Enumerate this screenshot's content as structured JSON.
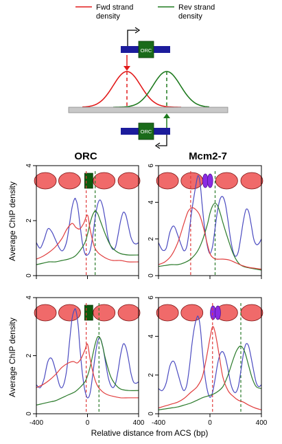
{
  "schematic": {
    "fwd_legend": "Fwd strand\ndensity",
    "rev_legend": "Rev strand\ndensity",
    "orc_label_top": "ORC",
    "orc_label_bottom": "ORC",
    "colors": {
      "fwd": "#e21b1b",
      "rev": "#1e7a1e",
      "dna": "#c8c8c8",
      "orc_box": "#1a6b1a",
      "dna_bar": "#1c1c9c"
    }
  },
  "columns": [
    "ORC",
    "Mcm2-7"
  ],
  "ylabel": "Average ChIP density",
  "xlabel": "Relative distance from ACS (bp)",
  "colors": {
    "fwd": "#e03c3c",
    "rev": "#2a7a2a",
    "nuc": "#4a4ac0",
    "nucleosome_fill": "#f06a6a",
    "orc_box": "#0d5a0d",
    "mcm": "#8a2be2"
  },
  "chart_data": [
    {
      "type": "line",
      "position": "top-left",
      "title": "ORC",
      "ylim": [
        0,
        4
      ],
      "yticks": [
        0,
        2,
        4
      ],
      "xlim": [
        -400,
        400
      ],
      "xticks": [
        -400,
        0,
        400
      ],
      "marker": "orc",
      "vlines": {
        "fwd": -10,
        "rev": 60
      },
      "series": [
        {
          "name": "fwd",
          "x": [
            -400,
            -350,
            -300,
            -250,
            -200,
            -160,
            -120,
            -90,
            -60,
            -30,
            0,
            20,
            50,
            80,
            120,
            160,
            200,
            260,
            320,
            400
          ],
          "y": [
            0.6,
            0.7,
            0.85,
            1.05,
            1.35,
            1.7,
            1.9,
            1.75,
            1.7,
            1.9,
            2.2,
            1.7,
            1.1,
            0.85,
            0.7,
            0.6,
            0.55,
            0.55,
            0.5,
            0.5
          ]
        },
        {
          "name": "rev",
          "x": [
            -400,
            -350,
            -300,
            -250,
            -200,
            -150,
            -100,
            -60,
            -20,
            0,
            20,
            40,
            60,
            80,
            100,
            140,
            180,
            220,
            260,
            320,
            400
          ],
          "y": [
            0.4,
            0.45,
            0.5,
            0.5,
            0.55,
            0.6,
            0.7,
            0.9,
            1.2,
            1.5,
            1.9,
            2.2,
            2.35,
            2.25,
            2.0,
            1.5,
            1.1,
            0.9,
            0.8,
            0.75,
            0.75
          ]
        },
        {
          "name": "nuc",
          "x": [
            -400,
            -370,
            -340,
            -310,
            -280,
            -250,
            -220,
            -200,
            -180,
            -160,
            -140,
            -120,
            -100,
            -90,
            -80,
            -70,
            -60,
            -40,
            -20,
            0,
            20,
            40,
            60,
            80,
            100,
            120,
            140,
            160,
            180,
            200,
            220,
            240,
            260,
            280,
            300,
            320,
            340,
            360,
            380,
            400
          ],
          "y": [
            1.2,
            1.0,
            1.3,
            1.7,
            1.6,
            1.3,
            1.0,
            0.9,
            1.0,
            1.3,
            1.9,
            2.5,
            2.8,
            2.75,
            2.6,
            2.3,
            1.9,
            1.2,
            0.8,
            0.75,
            0.9,
            1.4,
            2.1,
            2.6,
            2.75,
            2.5,
            2.0,
            1.4,
            1.1,
            0.95,
            1.05,
            1.5,
            2.0,
            2.3,
            2.2,
            1.8,
            1.4,
            1.2,
            1.15,
            1.2
          ]
        }
      ]
    },
    {
      "type": "line",
      "position": "top-right",
      "title": "Mcm2-7",
      "ylim": [
        0,
        6
      ],
      "yticks": [
        0,
        2,
        4,
        6
      ],
      "xlim": [
        -400,
        400
      ],
      "xticks": [
        -400,
        0,
        400
      ],
      "marker": "mcm",
      "vlines": {
        "fwd": -150,
        "rev": 40
      },
      "series": [
        {
          "name": "fwd",
          "x": [
            -400,
            -350,
            -300,
            -250,
            -200,
            -170,
            -140,
            -110,
            -80,
            -50,
            -20,
            0,
            20,
            50,
            100,
            150,
            200,
            250,
            300,
            350,
            400
          ],
          "y": [
            0.6,
            0.75,
            1.1,
            1.8,
            2.9,
            3.5,
            3.7,
            3.6,
            3.3,
            2.6,
            1.7,
            1.2,
            1.0,
            0.9,
            0.9,
            0.85,
            0.7,
            0.55,
            0.45,
            0.4,
            0.35
          ]
        },
        {
          "name": "rev",
          "x": [
            -400,
            -350,
            -300,
            -250,
            -200,
            -150,
            -100,
            -60,
            -20,
            0,
            20,
            40,
            60,
            80,
            100,
            140,
            180,
            220,
            260,
            320,
            400
          ],
          "y": [
            0.5,
            0.55,
            0.6,
            0.6,
            0.7,
            0.9,
            1.3,
            1.9,
            2.8,
            3.4,
            3.8,
            3.95,
            3.8,
            3.4,
            2.9,
            2.0,
            1.2,
            0.7,
            0.5,
            0.4,
            0.3
          ]
        },
        {
          "name": "nuc",
          "x": [
            -400,
            -370,
            -340,
            -310,
            -280,
            -250,
            -220,
            -200,
            -180,
            -160,
            -140,
            -120,
            -100,
            -90,
            -80,
            -70,
            -60,
            -40,
            -20,
            0,
            20,
            40,
            60,
            80,
            100,
            120,
            140,
            160,
            180,
            200,
            220,
            240,
            260,
            280,
            300,
            320,
            340,
            360,
            380,
            400
          ],
          "y": [
            1.8,
            1.4,
            1.5,
            2.4,
            2.7,
            2.2,
            1.6,
            1.35,
            1.6,
            2.5,
            3.6,
            4.5,
            5.3,
            5.45,
            5.2,
            4.6,
            3.8,
            2.5,
            1.6,
            1.2,
            1.6,
            2.6,
            3.6,
            4.2,
            4.3,
            3.9,
            3.0,
            2.0,
            1.3,
            1.05,
            1.3,
            2.1,
            3.0,
            3.6,
            3.5,
            2.8,
            2.0,
            1.7,
            1.75,
            2.0
          ]
        }
      ]
    },
    {
      "type": "line",
      "position": "bottom-left",
      "title": "",
      "ylim": [
        0,
        4
      ],
      "yticks": [
        0,
        2,
        4
      ],
      "xlim": [
        -400,
        400
      ],
      "xticks": [
        -400,
        0,
        400
      ],
      "marker": "orc",
      "vlines": {
        "fwd": -10,
        "rev": 90
      },
      "series": [
        {
          "name": "fwd",
          "x": [
            -400,
            -350,
            -300,
            -250,
            -200,
            -150,
            -110,
            -80,
            -50,
            -20,
            0,
            20,
            50,
            80,
            120,
            160,
            200,
            260,
            320,
            400
          ],
          "y": [
            0.9,
            1.0,
            1.15,
            1.35,
            1.6,
            1.75,
            1.8,
            1.75,
            1.9,
            2.2,
            2.4,
            1.9,
            1.3,
            0.95,
            0.75,
            0.65,
            0.6,
            0.55,
            0.55,
            0.55
          ]
        },
        {
          "name": "rev",
          "x": [
            -400,
            -350,
            -300,
            -250,
            -200,
            -150,
            -100,
            -60,
            -20,
            0,
            20,
            40,
            60,
            80,
            100,
            120,
            140,
            180,
            220,
            260,
            320,
            400
          ],
          "y": [
            0.3,
            0.35,
            0.4,
            0.45,
            0.55,
            0.65,
            0.75,
            0.9,
            1.1,
            1.3,
            1.6,
            2.0,
            2.4,
            2.65,
            2.6,
            2.3,
            1.9,
            1.3,
            1.0,
            0.85,
            0.8,
            0.8
          ]
        },
        {
          "name": "nuc",
          "x": [
            -400,
            -370,
            -340,
            -310,
            -280,
            -250,
            -220,
            -200,
            -180,
            -160,
            -140,
            -120,
            -100,
            -90,
            -80,
            -70,
            -60,
            -40,
            -20,
            0,
            20,
            40,
            60,
            80,
            100,
            120,
            140,
            160,
            180,
            200,
            220,
            240,
            260,
            280,
            300,
            320,
            340,
            360,
            380,
            400
          ],
          "y": [
            1.0,
            0.9,
            1.2,
            1.8,
            1.9,
            1.5,
            1.0,
            0.9,
            1.1,
            1.6,
            2.5,
            3.3,
            3.6,
            3.55,
            3.3,
            2.9,
            2.3,
            1.4,
            0.8,
            0.55,
            0.7,
            1.3,
            2.0,
            2.5,
            2.6,
            2.3,
            1.8,
            1.3,
            1.0,
            0.9,
            1.05,
            1.5,
            2.05,
            2.4,
            2.3,
            1.9,
            1.4,
            1.1,
            1.05,
            1.1
          ]
        }
      ]
    },
    {
      "type": "line",
      "position": "bottom-right",
      "title": "",
      "ylim": [
        0,
        6
      ],
      "yticks": [
        0,
        2,
        4,
        6
      ],
      "xlim": [
        -400,
        400
      ],
      "xticks": [
        -400,
        0,
        400
      ],
      "marker": "mcm",
      "vlines": {
        "fwd": 20,
        "rev": 240
      },
      "series": [
        {
          "name": "fwd",
          "x": [
            -400,
            -350,
            -300,
            -250,
            -200,
            -150,
            -100,
            -60,
            -30,
            0,
            20,
            40,
            70,
            100,
            140,
            180,
            220,
            260,
            300,
            350,
            400
          ],
          "y": [
            0.3,
            0.4,
            0.5,
            0.6,
            0.8,
            1.1,
            1.4,
            1.9,
            2.8,
            3.9,
            4.5,
            4.2,
            3.1,
            1.9,
            1.2,
            0.9,
            0.7,
            0.6,
            0.45,
            0.3,
            0.2
          ]
        },
        {
          "name": "rev",
          "x": [
            -400,
            -350,
            -300,
            -250,
            -200,
            -150,
            -100,
            -50,
            0,
            50,
            100,
            140,
            180,
            210,
            240,
            270,
            300,
            330,
            360,
            400
          ],
          "y": [
            0.2,
            0.25,
            0.3,
            0.35,
            0.45,
            0.55,
            0.7,
            0.85,
            0.95,
            1.1,
            1.4,
            2.0,
            2.8,
            3.3,
            3.5,
            3.2,
            2.5,
            1.8,
            1.4,
            1.3
          ]
        },
        {
          "name": "nuc",
          "x": [
            -400,
            -370,
            -340,
            -310,
            -280,
            -250,
            -220,
            -200,
            -180,
            -160,
            -140,
            -120,
            -100,
            -90,
            -80,
            -70,
            -60,
            -40,
            -20,
            0,
            20,
            40,
            60,
            80,
            100,
            120,
            140,
            160,
            180,
            200,
            220,
            240,
            260,
            280,
            300,
            320,
            340,
            360,
            380,
            400
          ],
          "y": [
            1.3,
            1.2,
            1.6,
            2.5,
            2.7,
            2.1,
            1.4,
            1.2,
            1.5,
            2.4,
            3.6,
            4.5,
            5.0,
            5.0,
            4.7,
            4.1,
            3.3,
            2.0,
            1.2,
            0.85,
            1.1,
            1.8,
            2.6,
            3.1,
            3.2,
            2.9,
            2.3,
            1.6,
            1.2,
            1.1,
            1.4,
            2.2,
            3.1,
            3.6,
            3.5,
            2.9,
            2.2,
            1.6,
            1.4,
            1.5
          ]
        }
      ]
    }
  ]
}
